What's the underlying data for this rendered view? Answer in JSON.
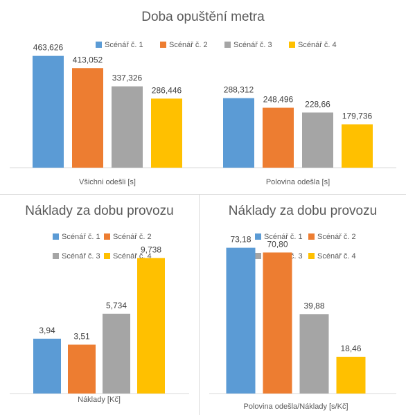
{
  "colors": {
    "series": [
      "#5B9BD5",
      "#ED7D31",
      "#A5A5A5",
      "#FFC000"
    ],
    "text": "#595959",
    "axis": "#d9d9d9"
  },
  "chart_data": [
    {
      "type": "bar",
      "title": "Doba opuštění metra",
      "categories": [
        "Všichni odešli [s]",
        "Polovina odešla [s]"
      ],
      "series": [
        {
          "name": "Scénář č. 1",
          "values": [
            463.626,
            288.312
          ],
          "labels": [
            "463,626",
            "288,312"
          ]
        },
        {
          "name": "Scénář č. 2",
          "values": [
            413.052,
            248.496
          ],
          "labels": [
            "413,052",
            "248,496"
          ]
        },
        {
          "name": "Scénář č. 3",
          "values": [
            337.326,
            228.66
          ],
          "labels": [
            "337,326",
            "228,66"
          ]
        },
        {
          "name": "Scénář č. 4",
          "values": [
            286.446,
            179.736
          ],
          "labels": [
            "286,446",
            "179,736"
          ]
        }
      ],
      "ylim": [
        0,
        500
      ],
      "grid": false,
      "legend": "top"
    },
    {
      "type": "bar",
      "title": "Náklady za dobu provozu",
      "categories": [
        "Náklady [Kč]"
      ],
      "series": [
        {
          "name": "Scénář č. 1",
          "values": [
            3.94
          ],
          "labels": [
            "3,94"
          ]
        },
        {
          "name": "Scénář č. 2",
          "values": [
            3.51
          ],
          "labels": [
            "3,51"
          ]
        },
        {
          "name": "Scénář č. 3",
          "values": [
            5.734
          ],
          "labels": [
            "5,734"
          ]
        },
        {
          "name": "Scénář č. 4",
          "values": [
            9.738
          ],
          "labels": [
            "9,738"
          ]
        }
      ],
      "ylim": [
        0,
        11
      ],
      "grid": false,
      "legend": "top"
    },
    {
      "type": "bar",
      "title": "Náklady za dobu provozu",
      "categories": [
        "Polovina odešla/Náklady [s/Kč]"
      ],
      "series": [
        {
          "name": "Scénář č. 1",
          "values": [
            73.18
          ],
          "labels": [
            "73,18"
          ]
        },
        {
          "name": "Scénář č. 2",
          "values": [
            70.8
          ],
          "labels": [
            "70,80"
          ]
        },
        {
          "name": "Scénář č. 3",
          "values": [
            39.88
          ],
          "labels": [
            "39,88"
          ]
        },
        {
          "name": "Scénář č. 4",
          "values": [
            18.46
          ],
          "labels": [
            "18,46"
          ]
        }
      ],
      "ylim": [
        0,
        80
      ],
      "grid": false,
      "legend": "top"
    }
  ]
}
